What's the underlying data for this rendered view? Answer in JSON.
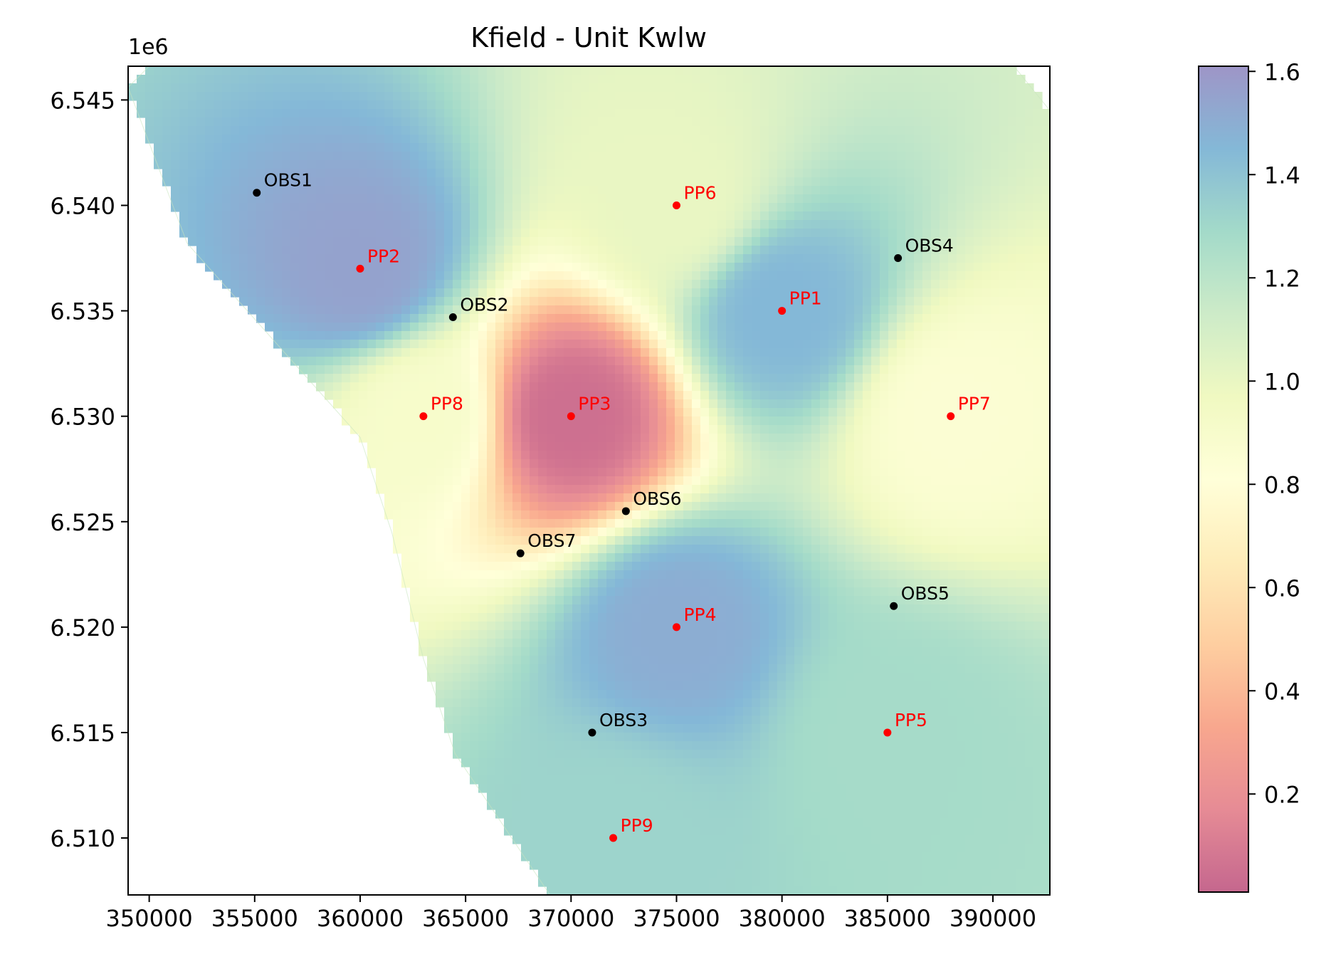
{
  "chart_data": {
    "type": "scatter",
    "title": "Kfield - Unit Kwlw",
    "y_offset_label": "1e6",
    "xlabel": "",
    "ylabel": "",
    "xlim": [
      349000,
      392700
    ],
    "ylim": [
      6507300,
      6546600
    ],
    "x_ticks": [
      350000,
      355000,
      360000,
      365000,
      370000,
      375000,
      380000,
      385000,
      390000
    ],
    "x_tick_labels": [
      "350000",
      "355000",
      "360000",
      "365000",
      "370000",
      "375000",
      "380000",
      "385000",
      "390000"
    ],
    "y_ticks": [
      6510000,
      6515000,
      6520000,
      6525000,
      6530000,
      6535000,
      6540000,
      6545000
    ],
    "y_tick_labels": [
      "6.510",
      "6.515",
      "6.520",
      "6.525",
      "6.530",
      "6.535",
      "6.540",
      "6.545"
    ],
    "grid": false,
    "domain_boundary": [
      [
        349000,
        6545600
      ],
      [
        350000,
        6546600
      ],
      [
        391000,
        6546600
      ],
      [
        392700,
        6544500
      ],
      [
        392700,
        6507300
      ],
      [
        369000,
        6507300
      ],
      [
        364500,
        6514000
      ],
      [
        363000,
        6518500
      ],
      [
        361500,
        6524500
      ],
      [
        360000,
        6529000
      ],
      [
        351800,
        6538200
      ],
      [
        349000,
        6545600
      ]
    ],
    "colorbar": {
      "min": 0.01,
      "max": 1.61,
      "ticks": [
        0.2,
        0.4,
        0.6,
        0.8,
        1.0,
        1.2,
        1.4,
        1.6
      ],
      "tick_labels": [
        "0.2",
        "0.4",
        "0.6",
        "0.8",
        "1.0",
        "1.2",
        "1.4",
        "1.6"
      ],
      "colormap": [
        "#9e0142",
        "#d53e4f",
        "#f46d43",
        "#fdae61",
        "#fee08b",
        "#ffffbf",
        "#e6f598",
        "#abdda4",
        "#66c2a5",
        "#3288bd",
        "#5e4fa2"
      ],
      "alpha": 0.6
    },
    "series": [
      {
        "marker_color": "#ff0000",
        "points": [
          {
            "label": "PP1",
            "x": 380000,
            "y": 6535000,
            "value": 1.45
          },
          {
            "label": "PP2",
            "x": 360000,
            "y": 6537000,
            "value": 1.55
          },
          {
            "label": "PP3",
            "x": 370000,
            "y": 6530000,
            "value": 0.05
          },
          {
            "label": "PP4",
            "x": 375000,
            "y": 6520000,
            "value": 1.5
          },
          {
            "label": "PP5",
            "x": 385000,
            "y": 6515000,
            "value": 1.28
          },
          {
            "label": "PP6",
            "x": 375000,
            "y": 6540000,
            "value": 1.0
          },
          {
            "label": "PP7",
            "x": 388000,
            "y": 6530000,
            "value": 0.85
          },
          {
            "label": "PP8",
            "x": 363000,
            "y": 6530000,
            "value": 0.9
          },
          {
            "label": "PP9",
            "x": 372000,
            "y": 6510000,
            "value": 1.32
          }
        ]
      },
      {
        "marker_color": "#000000",
        "points": [
          {
            "label": "OBS1",
            "x": 355100,
            "y": 6540600
          },
          {
            "label": "OBS2",
            "x": 364400,
            "y": 6534700
          },
          {
            "label": "OBS3",
            "x": 371000,
            "y": 6515000
          },
          {
            "label": "OBS4",
            "x": 385500,
            "y": 6537500
          },
          {
            "label": "OBS5",
            "x": 385300,
            "y": 6521000
          },
          {
            "label": "OBS6",
            "x": 372600,
            "y": 6525500
          },
          {
            "label": "OBS7",
            "x": 367600,
            "y": 6523500
          }
        ]
      }
    ]
  }
}
